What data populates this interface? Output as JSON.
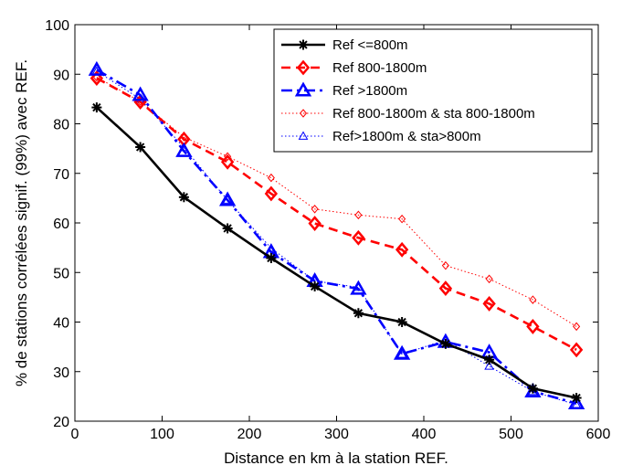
{
  "chart_data": {
    "type": "line",
    "title": "",
    "xlabel": "Distance en km à la station REF.",
    "ylabel": "% de stations corrélées signif. (99%) avec REF.",
    "xlim": [
      0,
      600
    ],
    "ylim": [
      20,
      100
    ],
    "xticks": [
      0,
      100,
      200,
      300,
      400,
      500,
      600
    ],
    "yticks": [
      20,
      30,
      40,
      50,
      60,
      70,
      80,
      90,
      100
    ],
    "grid": false,
    "legend_position": "top-right",
    "x": [
      25,
      75,
      125,
      175,
      225,
      275,
      325,
      375,
      425,
      475,
      525,
      575
    ],
    "series": [
      {
        "name": "Ref <=800m",
        "color": "#000000",
        "dash": "solid",
        "marker": "asterisk",
        "width": "thick",
        "values": [
          83.3,
          75.3,
          65.2,
          58.9,
          52.9,
          47.2,
          41.8,
          40.0,
          35.6,
          32.4,
          26.6,
          24.7
        ]
      },
      {
        "name": "Ref 800-1800m",
        "color": "#ff0000",
        "dash": "dashed",
        "marker": "diamond",
        "width": "thick",
        "values": [
          89.2,
          84.4,
          76.9,
          72.3,
          65.9,
          59.9,
          57.0,
          54.6,
          46.8,
          43.7,
          39.1,
          34.4
        ]
      },
      {
        "name": "Ref >1800m",
        "color": "#0000ff",
        "dash": "dashdot",
        "marker": "triangle",
        "width": "thick",
        "values": [
          90.9,
          85.8,
          74.5,
          64.6,
          54.1,
          48.3,
          46.7,
          33.6,
          36.0,
          33.9,
          26.0,
          23.6
        ]
      },
      {
        "name": "Ref 800-1800m & sta 800-1800m",
        "color": "#ff0000",
        "dash": "dotted",
        "marker": "diamond",
        "width": "thin",
        "values": [
          89.4,
          84.5,
          77.3,
          73.4,
          69.1,
          62.8,
          61.6,
          60.8,
          51.4,
          48.7,
          44.5,
          39.1
        ]
      },
      {
        "name": "Ref>1800m & sta>800m",
        "color": "#0000ff",
        "dash": "dotted",
        "marker": "triangle",
        "width": "thin",
        "values": [
          90.6,
          85.0,
          75.2,
          64.6,
          54.9,
          48.3,
          47.0,
          33.5,
          36.4,
          31.1,
          26.0,
          23.3
        ]
      }
    ]
  }
}
